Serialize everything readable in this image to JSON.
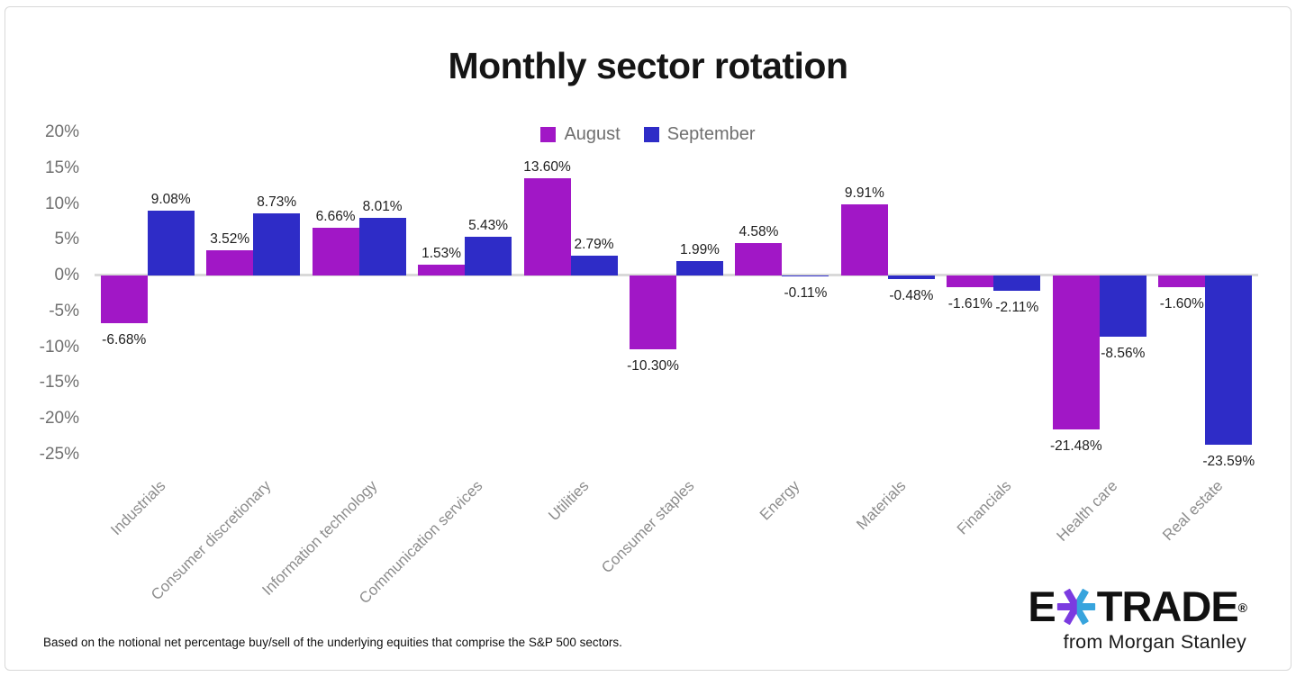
{
  "chart_data": {
    "type": "bar",
    "title": "Monthly sector rotation",
    "categories": [
      "Industrials",
      "Consumer discretionary",
      "Information technology",
      "Communication services",
      "Utilities",
      "Consumer staples",
      "Energy",
      "Materials",
      "Financials",
      "Health care",
      "Real estate"
    ],
    "series": [
      {
        "name": "August",
        "color": "#a117c6",
        "values": [
          -6.68,
          3.52,
          6.66,
          1.53,
          13.6,
          -10.3,
          4.58,
          9.91,
          -1.61,
          -21.48,
          -1.6
        ],
        "labels": [
          "-6.68%",
          "3.52%",
          "6.66%",
          "1.53%",
          "13.60%",
          "-10.30%",
          "4.58%",
          "9.91%",
          "-1.61%",
          "-21.48%",
          "-1.60%"
        ]
      },
      {
        "name": "September",
        "color": "#2e2cc7",
        "values": [
          9.08,
          8.73,
          8.01,
          5.43,
          2.79,
          1.99,
          -0.11,
          -0.48,
          -2.11,
          -8.56,
          -23.59
        ],
        "labels": [
          "9.08%",
          "8.73%",
          "8.01%",
          "5.43%",
          "2.79%",
          "1.99%",
          "-0.11%",
          "-0.48%",
          "-2.11%",
          "-8.56%",
          "-23.59%"
        ]
      }
    ],
    "y_axis": {
      "tick_labels": [
        "20%",
        "15%",
        "10%",
        "5%",
        "0%",
        "-5%",
        "-10%",
        "-15%",
        "-20%",
        "-25%"
      ],
      "tick_values": [
        20,
        15,
        10,
        5,
        0,
        -5,
        -10,
        -15,
        -20,
        -25
      ],
      "ylim": [
        -25,
        20
      ]
    },
    "grid": false,
    "legend_position": "top-center",
    "baseline_color": "#d9d9d9"
  },
  "footnote": "Based on the notional net percentage buy/sell of the underlying equities that comprise the S&P 500 sectors.",
  "logo": {
    "left": "E",
    "right": "TRADE",
    "reg": "®",
    "subtitle": "from Morgan Stanley",
    "asterisk_purple": "#7b3be0",
    "asterisk_blue": "#38a4dd"
  }
}
